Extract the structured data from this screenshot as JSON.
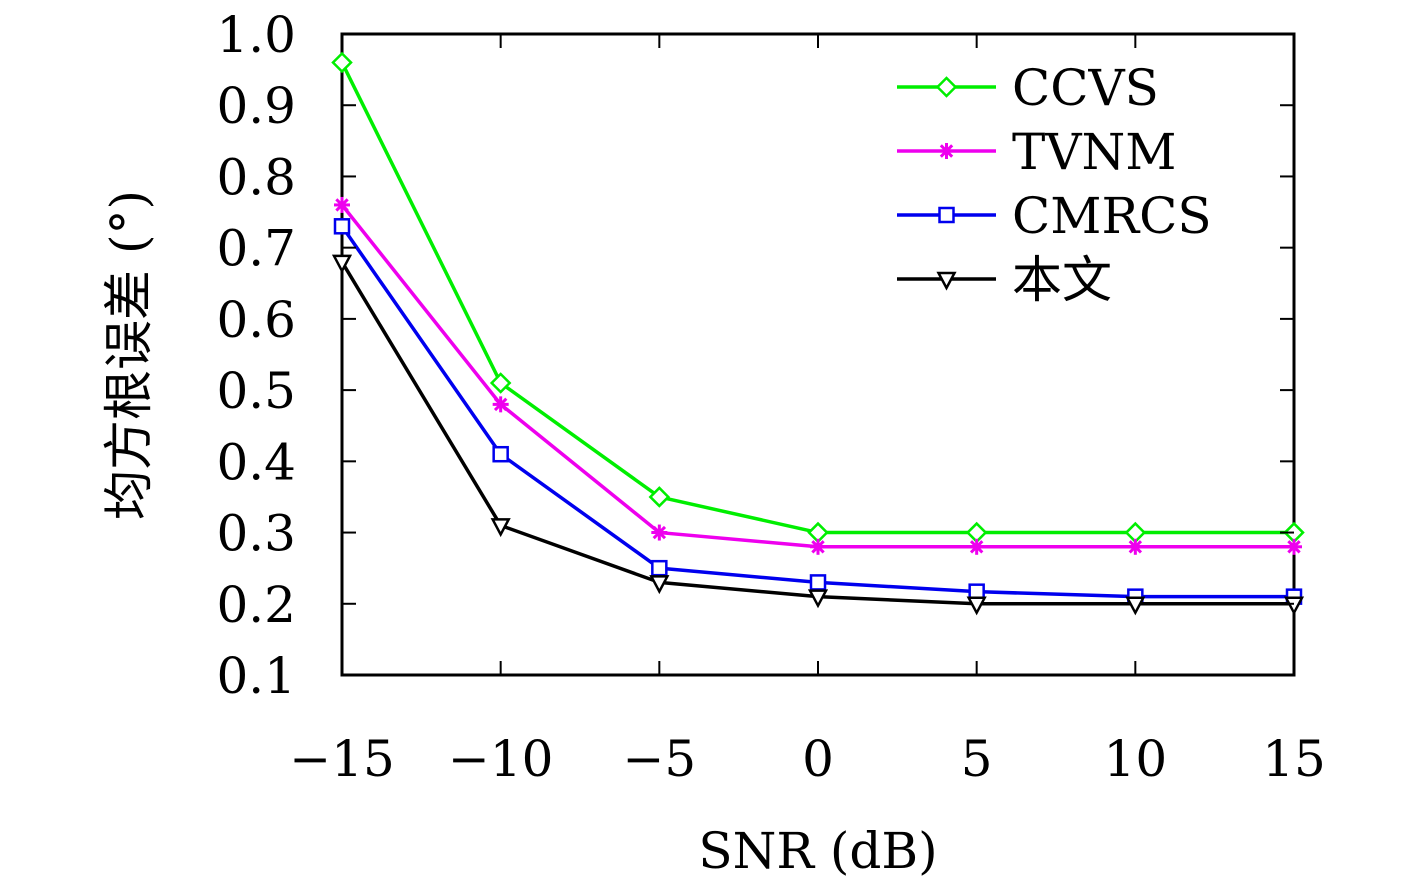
{
  "chart_data": {
    "type": "line",
    "xlabel": "SNR (dB)",
    "ylabel": "均方根误差 (°)",
    "xlim": [
      -15,
      15
    ],
    "ylim": [
      0.1,
      1.0
    ],
    "x": [
      -15,
      -10,
      -5,
      0,
      5,
      10,
      15
    ],
    "x_tick_labels": [
      "−15",
      "−10",
      "−5",
      "0",
      "5",
      "10",
      "15"
    ],
    "y_ticks": [
      0.1,
      0.2,
      0.3,
      0.4,
      0.5,
      0.6,
      0.7,
      0.8,
      0.9,
      1.0
    ],
    "y_tick_labels": [
      "0.1",
      "0.2",
      "0.3",
      "0.4",
      "0.5",
      "0.6",
      "0.7",
      "0.8",
      "0.9",
      "1.0"
    ],
    "grid": false,
    "legend_position": "top-right",
    "series": [
      {
        "name": "CCVS",
        "color": "#00ee00",
        "marker": "diamond",
        "values": [
          0.96,
          0.51,
          0.35,
          0.3,
          0.3,
          0.3,
          0.3
        ]
      },
      {
        "name": "TVNM",
        "color": "#ee00ee",
        "marker": "asterisk",
        "values": [
          0.76,
          0.48,
          0.3,
          0.28,
          0.28,
          0.28,
          0.28
        ]
      },
      {
        "name": "CMRCS",
        "color": "#0000ee",
        "marker": "square",
        "values": [
          0.73,
          0.41,
          0.25,
          0.23,
          0.217,
          0.21,
          0.21
        ]
      },
      {
        "name": "本文",
        "color": "#000000",
        "marker": "triangle-down",
        "values": [
          0.68,
          0.31,
          0.23,
          0.21,
          0.2,
          0.2,
          0.2
        ]
      }
    ]
  }
}
